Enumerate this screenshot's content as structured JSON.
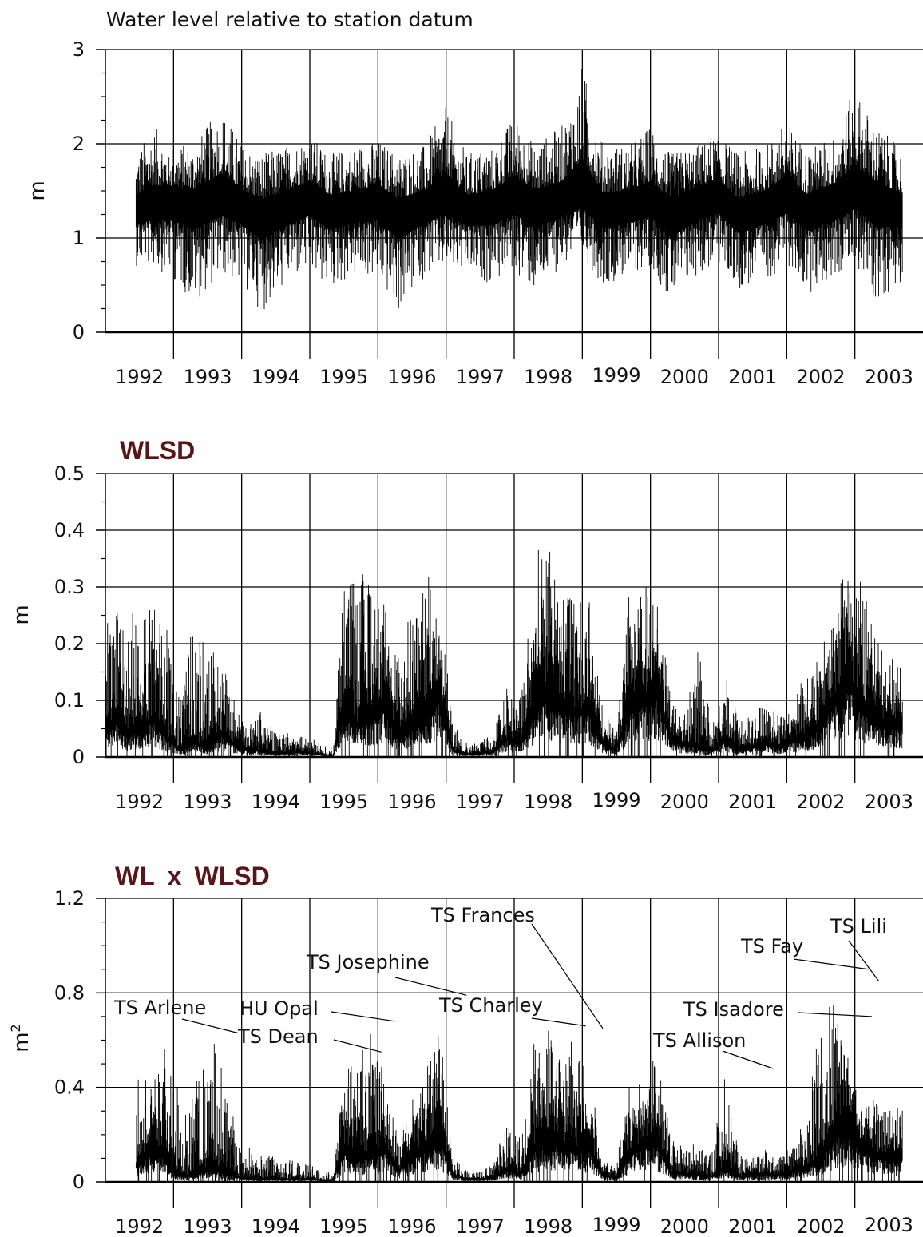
{
  "chart_data": [
    {
      "type": "line",
      "title": "Water level relative to station datum",
      "ylabel": "m",
      "ylim": [
        0,
        3
      ],
      "yticks": [
        "0",
        "1",
        "2",
        "3"
      ],
      "xlim": [
        1991.5,
        2003.5
      ],
      "xticks": [
        "1992",
        "1993",
        "1994",
        "1995",
        "1996",
        "1997",
        "1998",
        "1999",
        "2000",
        "2001",
        "2002",
        "2003"
      ],
      "grid": true,
      "series": [
        {
          "x": [
            1991.95,
            1992.2,
            1992.5,
            1992.8,
            1993.2,
            1993.5,
            1993.8,
            1994.2,
            1994.5,
            1994.8,
            1995.2,
            1995.5,
            1995.8,
            1996.2,
            1996.5,
            1996.8,
            1997.2,
            1997.5,
            1997.8,
            1998.2,
            1998.5,
            1998.8,
            1999.2,
            1999.5,
            1999.8,
            2000.2,
            2000.5,
            2000.8,
            2001.2,
            2001.5,
            2001.8,
            2002.2,
            2002.5,
            2002.8,
            2003.2
          ],
          "mean": [
            1.3,
            1.35,
            1.4,
            1.35,
            1.45,
            1.35,
            1.25,
            1.35,
            1.45,
            1.3,
            1.35,
            1.4,
            1.25,
            1.35,
            1.45,
            1.3,
            1.35,
            1.45,
            1.35,
            1.4,
            1.5,
            1.3,
            1.35,
            1.4,
            1.25,
            1.4,
            1.45,
            1.25,
            1.35,
            1.45,
            1.3,
            1.4,
            1.5,
            1.4,
            1.3
          ],
          "max": [
            1.9,
            2.2,
            2.0,
            2.0,
            2.4,
            2.0,
            1.9,
            2.0,
            2.1,
            1.9,
            2.0,
            2.05,
            1.9,
            2.0,
            2.4,
            1.9,
            2.0,
            2.3,
            2.0,
            2.2,
            2.85,
            2.0,
            2.0,
            2.2,
            1.9,
            2.0,
            2.1,
            1.9,
            2.0,
            2.25,
            1.95,
            2.1,
            2.6,
            2.2,
            1.95
          ],
          "min": [
            0.7,
            0.7,
            0.55,
            0.3,
            0.6,
            0.5,
            0.2,
            0.55,
            0.6,
            0.45,
            0.6,
            0.55,
            0.2,
            0.6,
            0.65,
            0.6,
            0.5,
            0.65,
            0.4,
            0.7,
            0.8,
            0.5,
            0.6,
            0.7,
            0.3,
            0.6,
            0.7,
            0.45,
            0.55,
            0.7,
            0.4,
            0.55,
            0.75,
            0.3,
            0.55
          ]
        }
      ]
    },
    {
      "type": "line",
      "title": "WLSD",
      "ylabel": "m",
      "ylim": [
        0,
        0.5
      ],
      "yticks": [
        "0",
        "0.1",
        "0.2",
        "0.3",
        "0.4",
        "0.5"
      ],
      "xlim": [
        1991.5,
        2003.5
      ],
      "xticks": [
        "1992",
        "1993",
        "1994",
        "1995",
        "1996",
        "1997",
        "1998",
        "1999",
        "2000",
        "2001",
        "2002",
        "2003"
      ],
      "grid": true,
      "series": [
        {
          "x": [
            1991.5,
            1991.65,
            1991.8,
            1992.0,
            1992.2,
            1992.4,
            1992.6,
            1992.8,
            1993.0,
            1993.2,
            1993.4,
            1993.6,
            1993.8,
            1994.0,
            1994.2,
            1994.4,
            1994.6,
            1994.75,
            1994.85,
            1995.0,
            1995.2,
            1995.4,
            1995.6,
            1995.8,
            1996.0,
            1996.2,
            1996.4,
            1996.6,
            1996.8,
            1997.0,
            1997.2,
            1997.4,
            1997.6,
            1997.8,
            1998.0,
            1998.2,
            1998.4,
            1998.6,
            1998.8,
            1999.0,
            1999.2,
            1999.4,
            1999.6,
            1999.8,
            2000.0,
            2000.2,
            2000.4,
            2000.6,
            2000.8,
            2001.0,
            2001.2,
            2001.4,
            2001.6,
            2001.8,
            2002.0,
            2002.2,
            2002.4,
            2002.6,
            2002.8,
            2003.0,
            2003.2
          ],
          "mean": [
            0.08,
            0.12,
            0.07,
            0.09,
            0.12,
            0.06,
            0.02,
            0.05,
            0.03,
            0.07,
            0.04,
            0.02,
            0.02,
            0.01,
            0.015,
            0.015,
            0.01,
            0.005,
            0.005,
            0.16,
            0.1,
            0.13,
            0.16,
            0.06,
            0.1,
            0.12,
            0.2,
            0.02,
            0.01,
            0.01,
            0.015,
            0.06,
            0.04,
            0.15,
            0.2,
            0.15,
            0.14,
            0.15,
            0.04,
            0.02,
            0.15,
            0.18,
            0.2,
            0.05,
            0.04,
            0.03,
            0.02,
            0.06,
            0.02,
            0.03,
            0.04,
            0.03,
            0.05,
            0.06,
            0.1,
            0.18,
            0.25,
            0.15,
            0.12,
            0.1,
            0.1
          ],
          "max": [
            0.25,
            0.29,
            0.25,
            0.28,
            0.3,
            0.29,
            0.1,
            0.26,
            0.2,
            0.21,
            0.1,
            0.06,
            0.09,
            0.05,
            0.05,
            0.04,
            0.03,
            0.02,
            0.02,
            0.36,
            0.33,
            0.34,
            0.3,
            0.2,
            0.3,
            0.33,
            0.36,
            0.06,
            0.03,
            0.03,
            0.05,
            0.14,
            0.12,
            0.35,
            0.41,
            0.33,
            0.32,
            0.3,
            0.1,
            0.05,
            0.31,
            0.34,
            0.29,
            0.12,
            0.09,
            0.2,
            0.06,
            0.15,
            0.07,
            0.08,
            0.1,
            0.08,
            0.13,
            0.16,
            0.22,
            0.36,
            0.37,
            0.34,
            0.23,
            0.2,
            0.2
          ]
        }
      ]
    },
    {
      "type": "line",
      "title_parts": [
        "WL",
        "x",
        "WLSD"
      ],
      "ylabel_base": "m",
      "ylabel_sup": "2",
      "ylim": [
        0,
        1.2
      ],
      "yticks": [
        "0",
        "0.4",
        "0.8",
        "1.2"
      ],
      "xlim": [
        1991.5,
        2003.5
      ],
      "xticks": [
        "1992",
        "1993",
        "1994",
        "1995",
        "1996",
        "1997",
        "1998",
        "1999",
        "2000",
        "2001",
        "2002",
        "2003"
      ],
      "grid": true,
      "series": [
        {
          "x": [
            1991.95,
            1992.1,
            1992.3,
            1992.5,
            1992.7,
            1992.9,
            1993.1,
            1993.3,
            1993.5,
            1993.7,
            1993.9,
            1994.1,
            1994.3,
            1994.5,
            1994.7,
            1994.85,
            1995.0,
            1995.2,
            1995.4,
            1995.6,
            1995.8,
            1996.0,
            1996.2,
            1996.4,
            1996.6,
            1996.8,
            1997.0,
            1997.2,
            1997.4,
            1997.6,
            1997.8,
            1998.0,
            1998.2,
            1998.4,
            1998.6,
            1998.8,
            1999.0,
            1999.2,
            1999.4,
            1999.6,
            1999.8,
            2000.0,
            2000.2,
            2000.4,
            2000.6,
            2000.8,
            2001.0,
            2001.2,
            2001.4,
            2001.6,
            2001.8,
            2002.0,
            2002.2,
            2002.4,
            2002.6,
            2002.8,
            2003.0,
            2003.2
          ],
          "mean": [
            0.12,
            0.2,
            0.25,
            0.06,
            0.04,
            0.08,
            0.1,
            0.06,
            0.03,
            0.02,
            0.02,
            0.02,
            0.02,
            0.02,
            0.01,
            0.01,
            0.25,
            0.18,
            0.22,
            0.25,
            0.08,
            0.2,
            0.25,
            0.35,
            0.05,
            0.02,
            0.02,
            0.03,
            0.1,
            0.06,
            0.25,
            0.3,
            0.28,
            0.25,
            0.25,
            0.05,
            0.03,
            0.22,
            0.28,
            0.3,
            0.07,
            0.06,
            0.05,
            0.04,
            0.1,
            0.04,
            0.05,
            0.06,
            0.05,
            0.08,
            0.1,
            0.2,
            0.35,
            0.45,
            0.25,
            0.2,
            0.18,
            0.18
          ],
          "max": [
            0.43,
            0.45,
            0.64,
            0.5,
            0.3,
            0.52,
            0.63,
            0.42,
            0.2,
            0.12,
            0.12,
            0.1,
            0.09,
            0.08,
            0.05,
            0.04,
            0.55,
            0.5,
            0.7,
            0.45,
            0.2,
            0.38,
            0.5,
            0.75,
            0.12,
            0.05,
            0.05,
            0.08,
            0.3,
            0.18,
            0.65,
            0.7,
            0.65,
            0.58,
            0.5,
            0.1,
            0.08,
            0.45,
            0.55,
            0.55,
            0.2,
            0.15,
            0.18,
            0.12,
            0.5,
            0.12,
            0.12,
            0.15,
            0.12,
            0.2,
            0.3,
            0.75,
            0.85,
            0.6,
            0.35,
            0.38,
            0.35,
            0.35
          ]
        }
      ],
      "annotations": [
        {
          "label": "TS Arlene",
          "x": 1993.45,
          "y": 0.63
        },
        {
          "label": "TS Dean",
          "x": 1995.55,
          "y": 0.55
        },
        {
          "label": "HU Opal",
          "x": 1995.75,
          "y": 0.68
        },
        {
          "label": "TS Josephine",
          "x": 1996.8,
          "y": 0.79
        },
        {
          "label": "TS Charley",
          "x": 1998.55,
          "y": 0.66
        },
        {
          "label": "TS Frances",
          "x": 1998.8,
          "y": 0.65
        },
        {
          "label": "TS Allison",
          "x": 2001.3,
          "y": 0.48
        },
        {
          "label": "TS Fay",
          "x": 2002.7,
          "y": 0.9
        },
        {
          "label": "TS Isadore",
          "x": 2002.75,
          "y": 0.7
        },
        {
          "label": "TS Lili",
          "x": 2002.85,
          "y": 0.85
        }
      ]
    }
  ]
}
